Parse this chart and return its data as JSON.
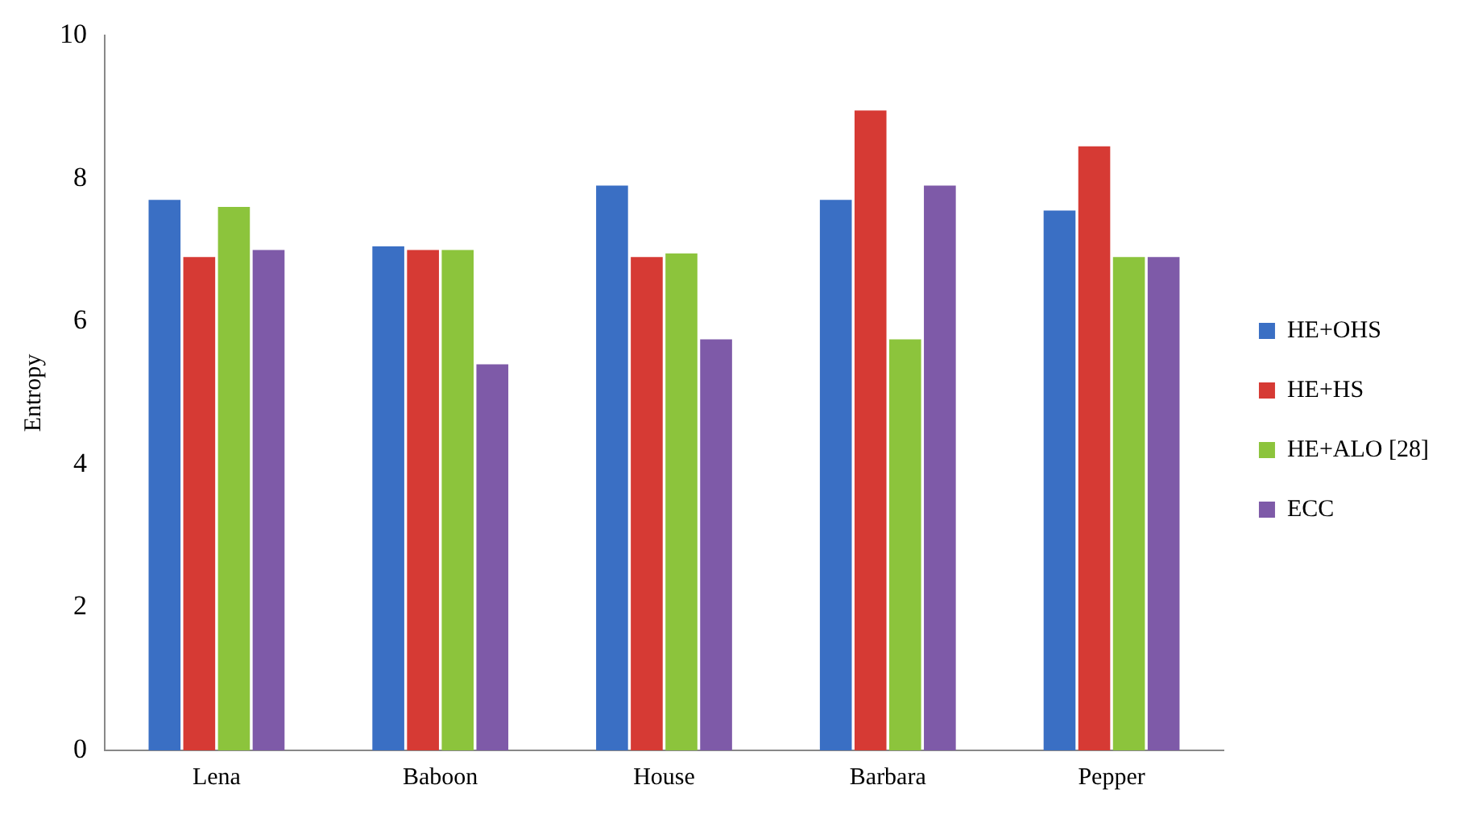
{
  "chart_data": {
    "type": "bar",
    "ylabel": "Entropy",
    "categories": [
      "Lena",
      "Baboon",
      "House",
      "Barbara",
      "Pepper"
    ],
    "series": [
      {
        "name": "HE+OHS",
        "color": "#3a6fc4",
        "values": [
          7.7,
          7.05,
          7.9,
          7.7,
          7.55
        ]
      },
      {
        "name": "HE+HS",
        "color": "#d63a34",
        "values": [
          6.9,
          7.0,
          6.9,
          8.95,
          8.45
        ]
      },
      {
        "name": "HE+ALO [28]",
        "color": "#8cc43c",
        "values": [
          7.6,
          7.0,
          6.95,
          5.75,
          6.9
        ]
      },
      {
        "name": "ECC",
        "color": "#7e5aa8",
        "values": [
          7.0,
          5.4,
          5.75,
          7.9,
          6.9
        ]
      }
    ],
    "ylim": [
      0,
      10
    ],
    "yticks": [
      0,
      2,
      4,
      6,
      8,
      10
    ],
    "grid": false,
    "legend": "right"
  }
}
